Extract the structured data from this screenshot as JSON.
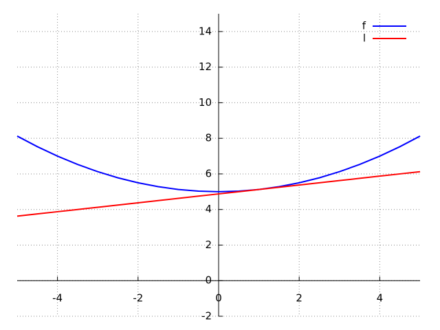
{
  "chart_data": {
    "type": "line",
    "x": [
      -5,
      -4.5,
      -4,
      -3.5,
      -3,
      -2.5,
      -2,
      -1.5,
      -1,
      -0.5,
      0,
      0.5,
      1,
      1.5,
      2,
      2.5,
      3,
      3.5,
      4,
      4.5,
      5
    ],
    "series": [
      {
        "name": "f",
        "color": "#0000ff",
        "values": [
          8.125,
          7.53125,
          7,
          6.53125,
          6.125,
          5.78125,
          5.5,
          5.28125,
          5.125,
          5.03125,
          5,
          5.03125,
          5.125,
          5.28125,
          5.5,
          5.78125,
          6.125,
          6.53125,
          7,
          7.53125,
          8.125
        ]
      },
      {
        "name": "l",
        "color": "#ff0000",
        "values": [
          3.625,
          3.75,
          3.875,
          4,
          4.125,
          4.25,
          4.375,
          4.5,
          4.625,
          4.75,
          4.875,
          5,
          5.125,
          5.25,
          5.375,
          5.5,
          5.625,
          5.75,
          5.875,
          6,
          6.125
        ]
      }
    ],
    "xlim": [
      -5,
      5
    ],
    "ylim": [
      -2,
      15
    ],
    "xticks": [
      -4,
      -2,
      0,
      2,
      4
    ],
    "yticks": [
      -2,
      0,
      2,
      4,
      6,
      8,
      10,
      12,
      14
    ],
    "grid": true,
    "legend": "upper-right"
  }
}
